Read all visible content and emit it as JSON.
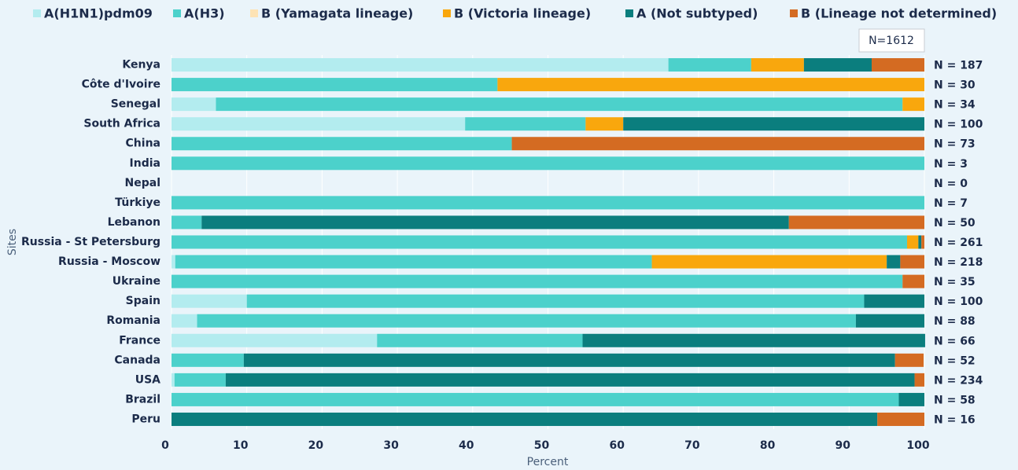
{
  "chart_data": {
    "type": "stacked-barh",
    "categories": [
      "Kenya",
      "Côte d'Ivoire",
      "Senegal",
      "South Africa",
      "China",
      "India",
      "Nepal",
      "Türkiye",
      "Lebanon",
      "Russia - St Petersburg",
      "Russia - Moscow",
      "Ukraine",
      "Spain",
      "Romania",
      "France",
      "Canada",
      "USA",
      "Brazil",
      "Peru"
    ],
    "series": [
      {
        "name": "A(H1N1)pdm09",
        "color": "#b3ecef",
        "values": [
          66,
          0,
          5.9,
          39,
          0,
          0,
          0,
          0,
          0,
          0,
          0.5,
          0,
          10,
          3.4,
          27.3,
          0,
          0.4,
          0,
          0
        ]
      },
      {
        "name": "A(H3)",
        "color": "#4cd1cb",
        "values": [
          11,
          43.3,
          91.2,
          16,
          45.2,
          100,
          0,
          100,
          4,
          97.7,
          63.3,
          97.1,
          82,
          87.5,
          27.3,
          9.6,
          6.8,
          96.6,
          0
        ]
      },
      {
        "name": "B (Yamagata lineage)",
        "color": "#fde3b5",
        "values": [
          0,
          0,
          0,
          0,
          0,
          0,
          0,
          0,
          0,
          0,
          0,
          0,
          0,
          0,
          0,
          0,
          0,
          0,
          0
        ]
      },
      {
        "name": "B (Victoria lineage)",
        "color": "#f9a70d",
        "values": [
          7,
          56.7,
          2.9,
          5,
          0,
          0,
          0,
          0,
          0,
          1.5,
          31.2,
          0,
          0,
          0,
          0,
          0,
          0,
          0,
          0
        ]
      },
      {
        "name": "A (Not subtyped)",
        "color": "#0b7e7e",
        "values": [
          9,
          0,
          0,
          40,
          0,
          0,
          0,
          0,
          78,
          0.4,
          1.8,
          0,
          8,
          9.1,
          45.5,
          86.5,
          91.5,
          3.4,
          93.75
        ]
      },
      {
        "name": "B (Lineage not determined)",
        "color": "#d46b22",
        "values": [
          7,
          0,
          0,
          0,
          54.8,
          0,
          0,
          0,
          18,
          0.4,
          3.2,
          2.9,
          0,
          0,
          0,
          3.8,
          1.3,
          0,
          6.25
        ]
      }
    ],
    "n_labels": [
      "N = 187",
      "N = 30",
      "N = 34",
      "N = 100",
      "N = 73",
      "N = 3",
      "N = 0",
      "N = 7",
      "N = 50",
      "N = 261",
      "N = 218",
      "N = 35",
      "N = 100",
      "N = 88",
      "N = 66",
      "N = 52",
      "N = 234",
      "N = 58",
      "N = 16"
    ],
    "annotation": "N=1612",
    "xlabel": "Percent",
    "ylabel": "Sites",
    "xlim": [
      0,
      100
    ],
    "xticks": [
      0,
      10,
      20,
      30,
      40,
      50,
      60,
      70,
      80,
      90,
      100
    ],
    "grid": true
  }
}
